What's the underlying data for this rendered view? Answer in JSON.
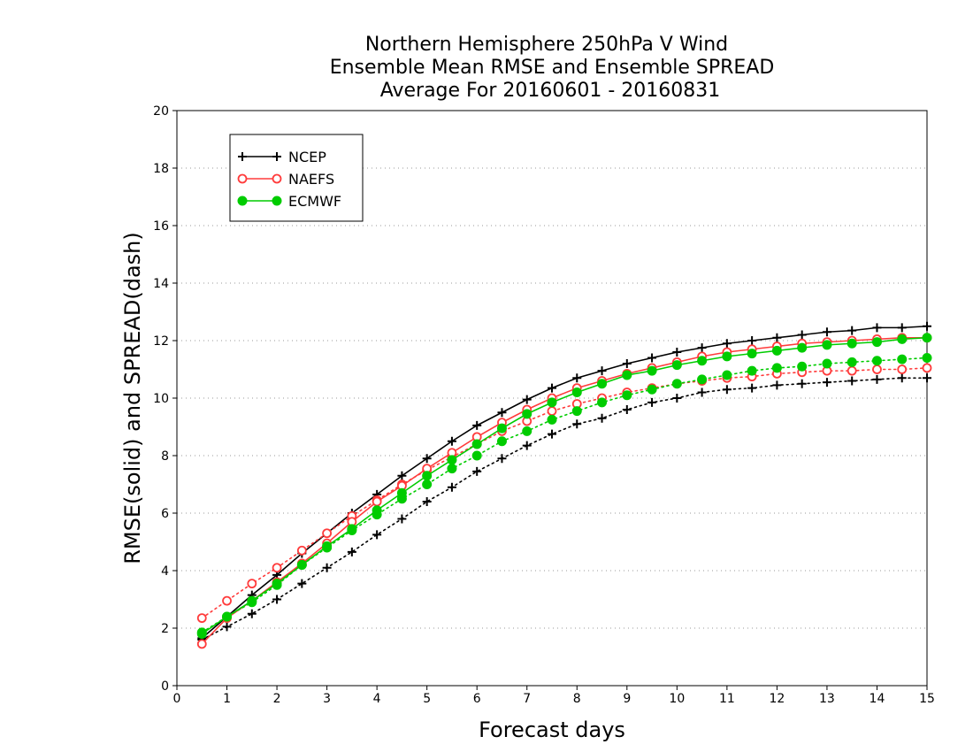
{
  "chart_data": {
    "type": "line",
    "title": [
      "Northern Hemisphere 250hPa V Wind",
      "Ensemble Mean RMSE and Ensemble SPREAD",
      "Average For 20160601 - 20160831"
    ],
    "xlabel": "Forecast days",
    "ylabel": "RMSE(solid) and SPREAD(dash)",
    "xlim": [
      0,
      15
    ],
    "ylim": [
      0,
      20
    ],
    "x_ticks": [
      0,
      1,
      2,
      3,
      4,
      5,
      6,
      7,
      8,
      9,
      10,
      11,
      12,
      13,
      14,
      15
    ],
    "y_ticks": [
      0,
      2,
      4,
      6,
      8,
      10,
      12,
      14,
      16,
      18,
      20
    ],
    "grid": "horizontal dotted",
    "legend_position": "top-left",
    "x": [
      0.5,
      1,
      1.5,
      2,
      2.5,
      3,
      3.5,
      4,
      4.5,
      5,
      5.5,
      6,
      6.5,
      7,
      7.5,
      8,
      8.5,
      9,
      9.5,
      10,
      10.5,
      11,
      11.5,
      12,
      12.5,
      13,
      13.5,
      14,
      14.5,
      15
    ],
    "series": [
      {
        "name": "NCEP",
        "color": "#000000",
        "marker": "plus",
        "rmse": [
          1.65,
          2.4,
          3.15,
          3.85,
          4.6,
          5.3,
          6.0,
          6.65,
          7.3,
          7.9,
          8.5,
          9.05,
          9.5,
          9.95,
          10.35,
          10.7,
          10.95,
          11.2,
          11.4,
          11.6,
          11.75,
          11.9,
          12.0,
          12.1,
          12.2,
          12.3,
          12.35,
          12.45,
          12.45,
          12.5
        ],
        "spread": [
          1.6,
          2.05,
          2.5,
          3.0,
          3.55,
          4.1,
          4.65,
          5.25,
          5.8,
          6.4,
          6.9,
          7.45,
          7.9,
          8.35,
          8.75,
          9.1,
          9.3,
          9.6,
          9.85,
          10.0,
          10.2,
          10.3,
          10.35,
          10.45,
          10.5,
          10.55,
          10.6,
          10.65,
          10.7,
          10.7
        ]
      },
      {
        "name": "NAEFS",
        "color": "#ff3b3b",
        "marker": "open-circle",
        "rmse": [
          1.45,
          2.35,
          2.95,
          3.6,
          4.25,
          4.95,
          5.7,
          6.4,
          6.95,
          7.55,
          8.1,
          8.65,
          9.15,
          9.6,
          10.0,
          10.35,
          10.6,
          10.85,
          11.05,
          11.25,
          11.45,
          11.6,
          11.7,
          11.8,
          11.9,
          11.95,
          12.0,
          12.05,
          12.1,
          12.1
        ],
        "spread": [
          2.35,
          2.95,
          3.55,
          4.1,
          4.7,
          5.3,
          5.9,
          6.45,
          7.0,
          7.5,
          7.95,
          8.4,
          8.85,
          9.2,
          9.55,
          9.8,
          10.0,
          10.2,
          10.35,
          10.5,
          10.6,
          10.7,
          10.75,
          10.85,
          10.9,
          10.95,
          10.95,
          11.0,
          11.0,
          11.05
        ]
      },
      {
        "name": "ECMWF",
        "color": "#00cc00",
        "marker": "filled-circle",
        "rmse": [
          1.8,
          2.4,
          2.95,
          3.55,
          4.2,
          4.85,
          5.45,
          6.1,
          6.7,
          7.3,
          7.85,
          8.4,
          8.95,
          9.45,
          9.85,
          10.2,
          10.5,
          10.8,
          10.95,
          11.15,
          11.3,
          11.45,
          11.55,
          11.65,
          11.75,
          11.85,
          11.9,
          11.95,
          12.05,
          12.1
        ],
        "spread": [
          1.85,
          2.4,
          2.9,
          3.5,
          4.2,
          4.8,
          5.4,
          5.95,
          6.5,
          7.0,
          7.55,
          8.0,
          8.5,
          8.85,
          9.25,
          9.55,
          9.85,
          10.1,
          10.3,
          10.5,
          10.65,
          10.8,
          10.95,
          11.05,
          11.1,
          11.2,
          11.25,
          11.3,
          11.35,
          11.4
        ]
      }
    ]
  }
}
